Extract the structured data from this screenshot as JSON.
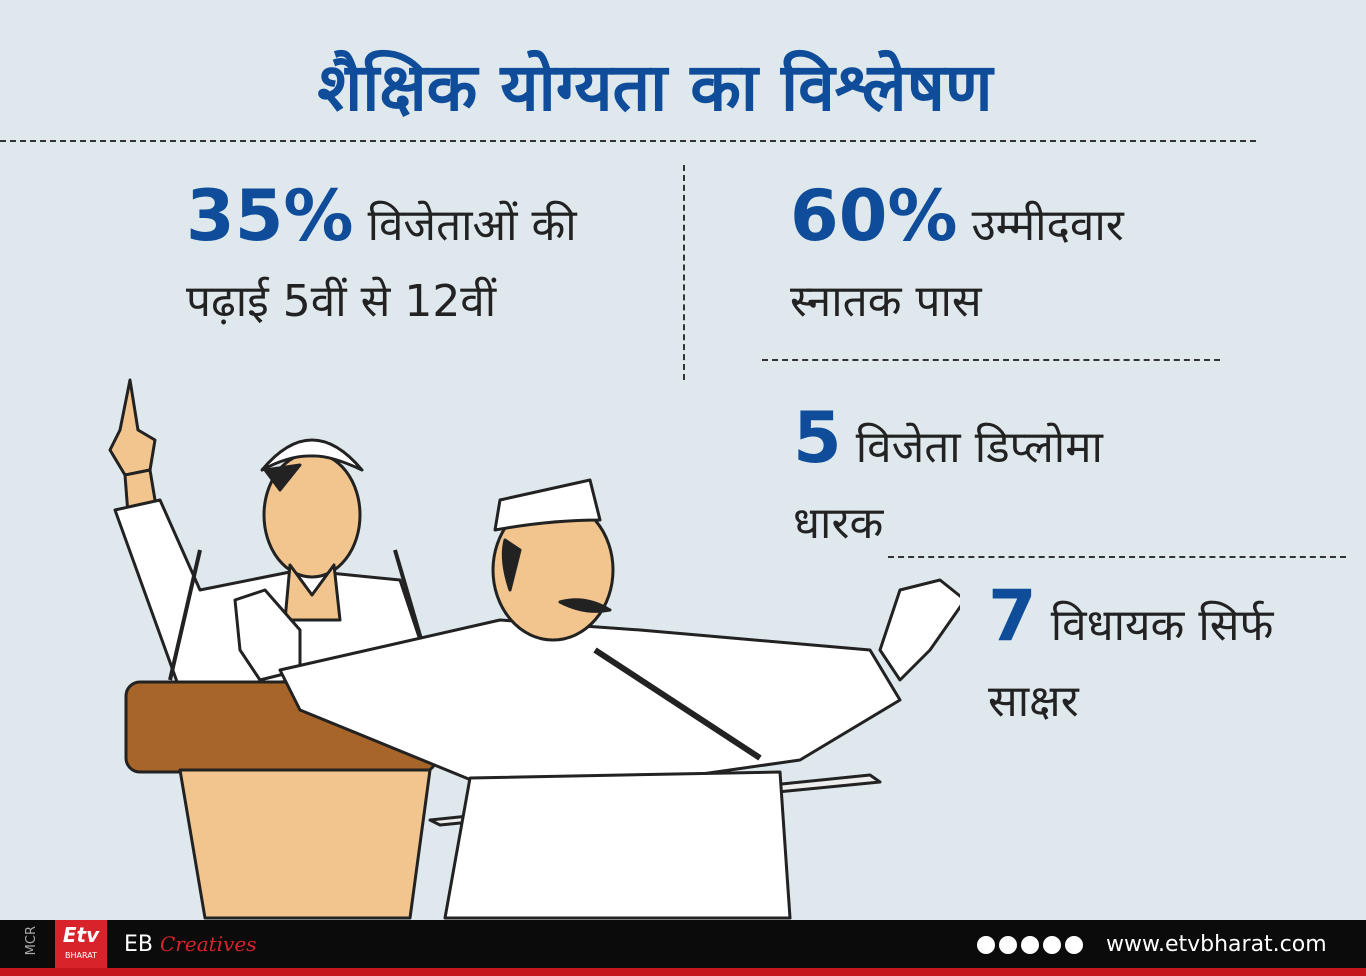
{
  "header": {
    "title": "शैक्षिक योग्यता का विश्लेषण"
  },
  "stats": [
    {
      "number": "35%",
      "line1": "विजेताओं की",
      "line2": "पढ़ाई 5वीं से 12वीं"
    },
    {
      "number": "60%",
      "line1": "उम्मीदवार",
      "line2": "स्नातक पास"
    },
    {
      "number": "5",
      "line1": "विजेता डिप्लोमा",
      "line2": "धारक"
    },
    {
      "number": "7",
      "line1": "विधायक सिर्फ",
      "line2": "साक्षर"
    }
  ],
  "footer": {
    "region": "MCR",
    "logo_top": "Etv",
    "logo_bottom": "BHARAT",
    "brand": "EB",
    "brand_script": "Creatives",
    "website": "www.etvbharat.com"
  }
}
